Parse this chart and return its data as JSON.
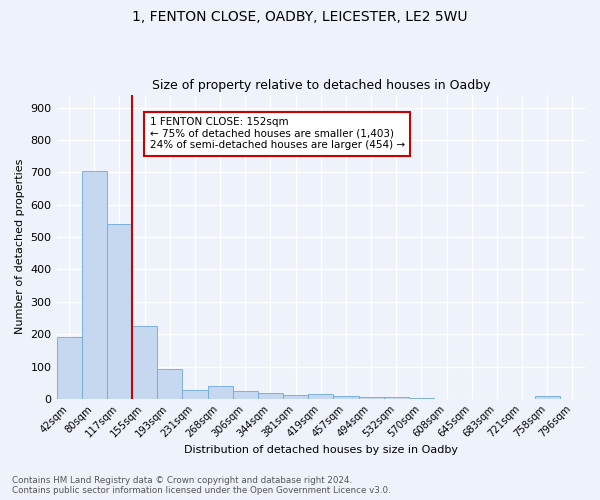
{
  "title1": "1, FENTON CLOSE, OADBY, LEICESTER, LE2 5WU",
  "title2": "Size of property relative to detached houses in Oadby",
  "xlabel": "Distribution of detached houses by size in Oadby",
  "ylabel": "Number of detached properties",
  "categories": [
    "42sqm",
    "80sqm",
    "117sqm",
    "155sqm",
    "193sqm",
    "231sqm",
    "268sqm",
    "306sqm",
    "344sqm",
    "381sqm",
    "419sqm",
    "457sqm",
    "494sqm",
    "532sqm",
    "570sqm",
    "608sqm",
    "645sqm",
    "683sqm",
    "721sqm",
    "758sqm",
    "796sqm"
  ],
  "values": [
    190,
    705,
    540,
    225,
    93,
    28,
    40,
    25,
    18,
    12,
    14,
    8,
    6,
    5,
    4,
    0,
    0,
    0,
    0,
    10,
    0
  ],
  "bar_color": "#c5d8f0",
  "bar_edge_color": "#6fa8d5",
  "vline_color": "#cc0000",
  "annotation_text": "1 FENTON CLOSE: 152sqm\n← 75% of detached houses are smaller (1,403)\n24% of semi-detached houses are larger (454) →",
  "annotation_box_color": "#ffffff",
  "annotation_box_edge": "#cc0000",
  "ylim": [
    0,
    940
  ],
  "yticks": [
    0,
    100,
    200,
    300,
    400,
    500,
    600,
    700,
    800,
    900
  ],
  "footer": "Contains HM Land Registry data © Crown copyright and database right 2024.\nContains public sector information licensed under the Open Government Licence v3.0.",
  "background_color": "#eef2fa",
  "grid_color": "#ffffff"
}
